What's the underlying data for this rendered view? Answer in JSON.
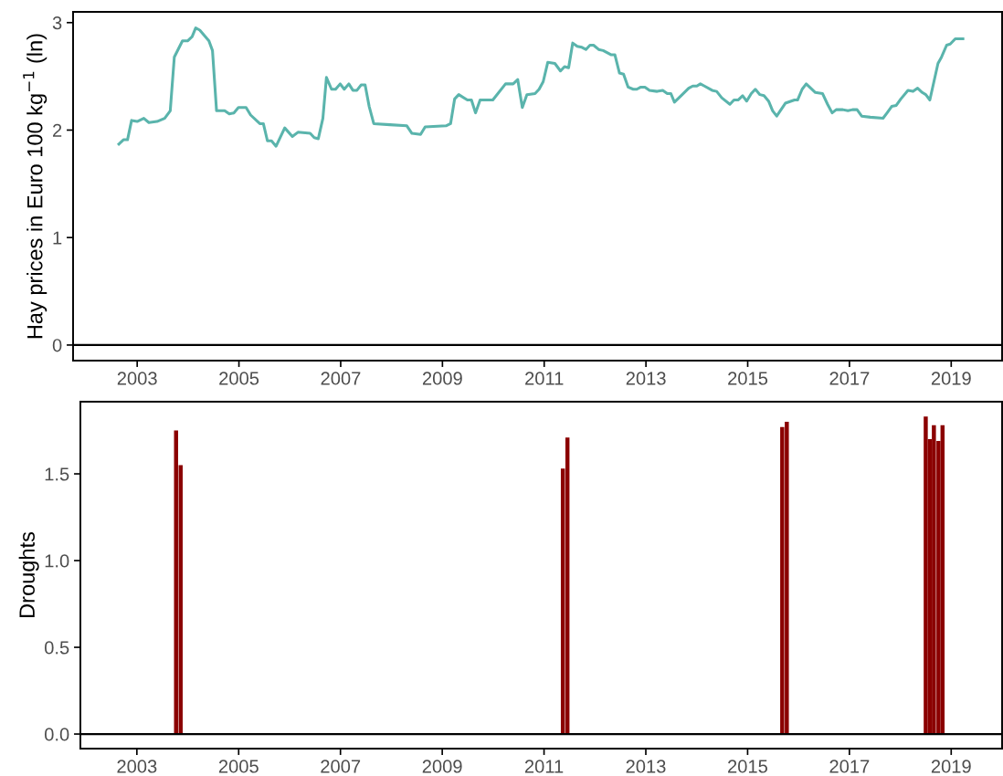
{
  "chart_data": [
    {
      "type": "line",
      "ylabel": "Hay prices in Euro 100 kg$^{−1}$ (ln)",
      "color": "#5ab4ac",
      "grid": false,
      "marker": "none",
      "line_style": "solid",
      "x": [
        2002.64,
        2002.73,
        2002.81,
        2002.89,
        2003.0,
        2003.13,
        2003.23,
        2003.39,
        2003.54,
        2003.65,
        2003.73,
        2003.89,
        2003.99,
        2004.08,
        2004.15,
        2004.23,
        2004.41,
        2004.48,
        2004.56,
        2004.72,
        2004.81,
        2004.9,
        2004.99,
        2005.14,
        2005.23,
        2005.41,
        2005.48,
        2005.56,
        2005.64,
        2005.73,
        2005.9,
        2006.05,
        2006.16,
        2006.4,
        2006.48,
        2006.56,
        2006.65,
        2006.72,
        2006.82,
        2006.9,
        2006.99,
        2007.07,
        2007.16,
        2007.24,
        2007.32,
        2007.4,
        2007.48,
        2007.56,
        2007.65,
        2007.97,
        2008.3,
        2008.4,
        2008.57,
        2008.66,
        2009.07,
        2009.16,
        2009.24,
        2009.32,
        2009.49,
        2009.57,
        2009.65,
        2009.74,
        2009.99,
        2010.24,
        2010.39,
        2010.48,
        2010.57,
        2010.66,
        2010.82,
        2010.9,
        2010.98,
        2011.07,
        2011.21,
        2011.32,
        2011.4,
        2011.48,
        2011.56,
        2011.65,
        2011.74,
        2011.82,
        2011.9,
        2011.97,
        2012.07,
        2012.16,
        2012.32,
        2012.39,
        2012.48,
        2012.56,
        2012.65,
        2012.75,
        2012.82,
        2012.9,
        2012.98,
        2013.07,
        2013.22,
        2013.33,
        2013.42,
        2013.49,
        2013.56,
        2013.69,
        2013.84,
        2013.92,
        2014.0,
        2014.07,
        2014.15,
        2014.3,
        2014.39,
        2014.49,
        2014.65,
        2014.73,
        2014.81,
        2014.9,
        2014.98,
        2015.07,
        2015.15,
        2015.24,
        2015.32,
        2015.41,
        2015.49,
        2015.57,
        2015.74,
        2015.92,
        2015.98,
        2016.07,
        2016.15,
        2016.24,
        2016.33,
        2016.47,
        2016.57,
        2016.66,
        2016.74,
        2016.87,
        2016.97,
        2017.06,
        2017.15,
        2017.24,
        2017.41,
        2017.66,
        2017.74,
        2017.83,
        2017.92,
        2018.01,
        2018.15,
        2018.25,
        2018.34,
        2018.43,
        2018.5,
        2018.58,
        2018.74,
        2018.81,
        2018.91,
        2018.98,
        2019.08,
        2019.23
      ],
      "values": [
        1.87,
        1.91,
        1.91,
        2.09,
        2.08,
        2.11,
        2.07,
        2.08,
        2.11,
        2.18,
        2.68,
        2.83,
        2.83,
        2.87,
        2.95,
        2.93,
        2.83,
        2.74,
        2.18,
        2.18,
        2.15,
        2.16,
        2.21,
        2.21,
        2.14,
        2.06,
        2.06,
        1.9,
        1.9,
        1.85,
        2.02,
        1.94,
        1.98,
        1.97,
        1.93,
        1.92,
        2.11,
        2.49,
        2.38,
        2.38,
        2.43,
        2.38,
        2.43,
        2.37,
        2.37,
        2.42,
        2.42,
        2.22,
        2.06,
        2.05,
        2.04,
        1.97,
        1.96,
        2.03,
        2.04,
        2.06,
        2.29,
        2.33,
        2.28,
        2.28,
        2.16,
        2.28,
        2.28,
        2.43,
        2.43,
        2.47,
        2.21,
        2.33,
        2.34,
        2.38,
        2.45,
        2.63,
        2.62,
        2.55,
        2.59,
        2.58,
        2.81,
        2.78,
        2.77,
        2.75,
        2.79,
        2.79,
        2.75,
        2.74,
        2.7,
        2.7,
        2.53,
        2.52,
        2.4,
        2.38,
        2.38,
        2.4,
        2.4,
        2.37,
        2.36,
        2.37,
        2.34,
        2.34,
        2.26,
        2.32,
        2.39,
        2.41,
        2.41,
        2.43,
        2.41,
        2.37,
        2.36,
        2.3,
        2.24,
        2.28,
        2.28,
        2.32,
        2.27,
        2.34,
        2.38,
        2.33,
        2.32,
        2.27,
        2.18,
        2.13,
        2.25,
        2.28,
        2.28,
        2.38,
        2.43,
        2.39,
        2.35,
        2.34,
        2.24,
        2.16,
        2.19,
        2.19,
        2.18,
        2.19,
        2.19,
        2.13,
        2.12,
        2.11,
        2.16,
        2.22,
        2.23,
        2.29,
        2.37,
        2.36,
        2.39,
        2.35,
        2.33,
        2.28,
        2.62,
        2.68,
        2.79,
        2.8,
        2.85,
        2.85
      ],
      "xlim": [
        2001.74,
        2020.0
      ],
      "ylim": [
        -0.145,
        3.1
      ],
      "xticks": [
        2003,
        2005,
        2007,
        2009,
        2011,
        2013,
        2015,
        2017,
        2019
      ],
      "yticks": [
        0,
        1,
        2,
        3
      ],
      "ref_lines": [
        {
          "axis": "y",
          "value": 0,
          "color": "#000000"
        }
      ]
    },
    {
      "type": "bar",
      "ylabel": "Droughts",
      "color": "#8b0000",
      "grid": false,
      "x": [
        2003.77,
        2003.86,
        2011.37,
        2011.46,
        2015.68,
        2015.77,
        2018.5,
        2018.58,
        2018.66,
        2018.75,
        2018.83
      ],
      "values": [
        1.75,
        1.55,
        1.53,
        1.71,
        1.77,
        1.8,
        1.83,
        1.7,
        1.78,
        1.69,
        1.78
      ],
      "xlim": [
        2001.89,
        2020.0
      ],
      "ylim": [
        -0.084,
        1.916
      ],
      "xticks": [
        2003,
        2005,
        2007,
        2009,
        2011,
        2013,
        2015,
        2017,
        2019
      ],
      "yticks": [
        {
          "value": 0,
          "label": "0.0"
        },
        {
          "value": 0.5,
          "label": "0.5"
        },
        {
          "value": 1,
          "label": "1.0"
        },
        {
          "value": 1.5,
          "label": "1.5"
        }
      ],
      "ref_lines": [
        {
          "axis": "y",
          "value": 0,
          "color": "#000000"
        }
      ]
    }
  ]
}
